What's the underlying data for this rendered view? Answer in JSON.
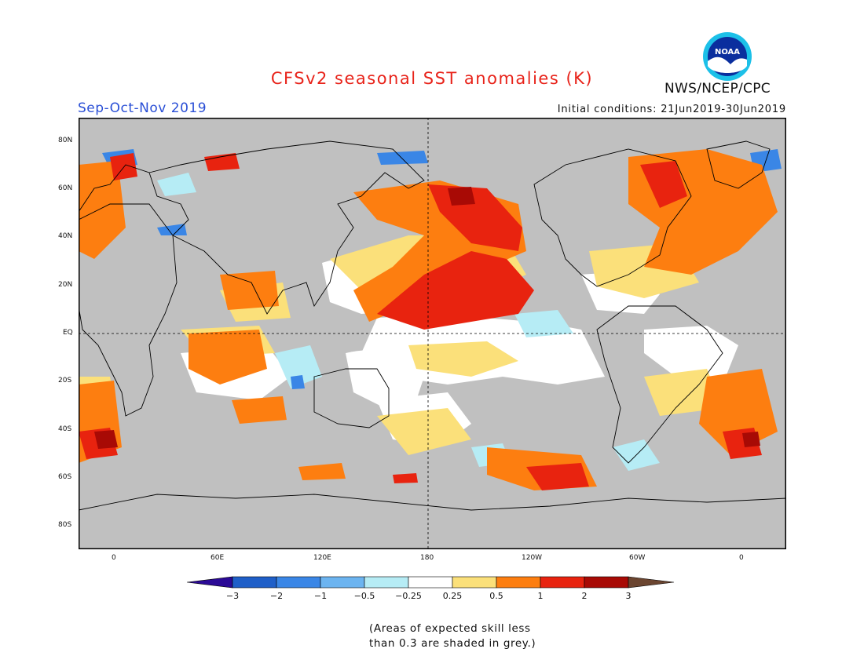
{
  "title": "CFSv2 seasonal SST anomalies (K)",
  "season": "Sep-Oct-Nov 2019",
  "initial_conditions": "Initial conditions: 21Jun2019-30Jun2019",
  "agency": "NWS/NCEP/CPC",
  "logo_text": "NOAA",
  "note": [
    "(Areas of expected skill less",
    "than 0.3 are shaded in grey.)"
  ],
  "lat_ticks": [
    "80N",
    "60N",
    "40N",
    "20N",
    "EQ",
    "20S",
    "40S",
    "60S",
    "80S"
  ],
  "lon_ticks": [
    "0",
    "60E",
    "120E",
    "180",
    "120W",
    "60W",
    "0"
  ],
  "colorbar": {
    "labels": [
      "-3",
      "-2",
      "-1",
      "-0.5",
      "-0.25",
      "0.25",
      "0.5",
      "1",
      "2",
      "3"
    ],
    "colors": {
      "below_-3": "#2b0a96",
      "-3_-2": "#1f5fc8",
      "-2_-1": "#3a86e6",
      "-1_-0.5": "#6cb4f0",
      "-0.5_-0.25": "#b6ecf5",
      "-0.25_0.25": "#ffffff",
      "0.25_0.5": "#fbe07a",
      "0.5_1": "#fd7e10",
      "1_2": "#e8230f",
      "2_3": "#a80a05",
      "above_3": "#6b4530"
    }
  },
  "colors": {
    "no_skill_grey": "#c0c0c0",
    "land": "#c0c0c0",
    "title_red": "#e8231a",
    "season_blue": "#2a4fd6"
  }
}
